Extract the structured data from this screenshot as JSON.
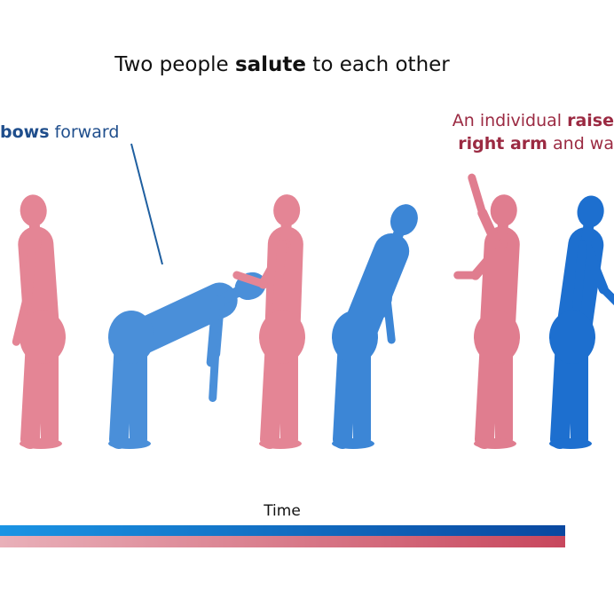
{
  "title": {
    "before": "Two people ",
    "bold": "salute",
    "after": " to each other"
  },
  "annotations": [
    {
      "lines": [
        [
          {
            "text": "bows",
            "bold": true
          },
          {
            "text": " forward"
          }
        ]
      ]
    },
    {
      "lines": [
        [
          {
            "text": "An individual "
          },
          {
            "text": "raise",
            "bold": true
          }
        ],
        [
          {
            "text": "right arm",
            "bold": true
          },
          {
            "text": " and wa"
          }
        ]
      ]
    }
  ],
  "timeline_label": "Time"
}
